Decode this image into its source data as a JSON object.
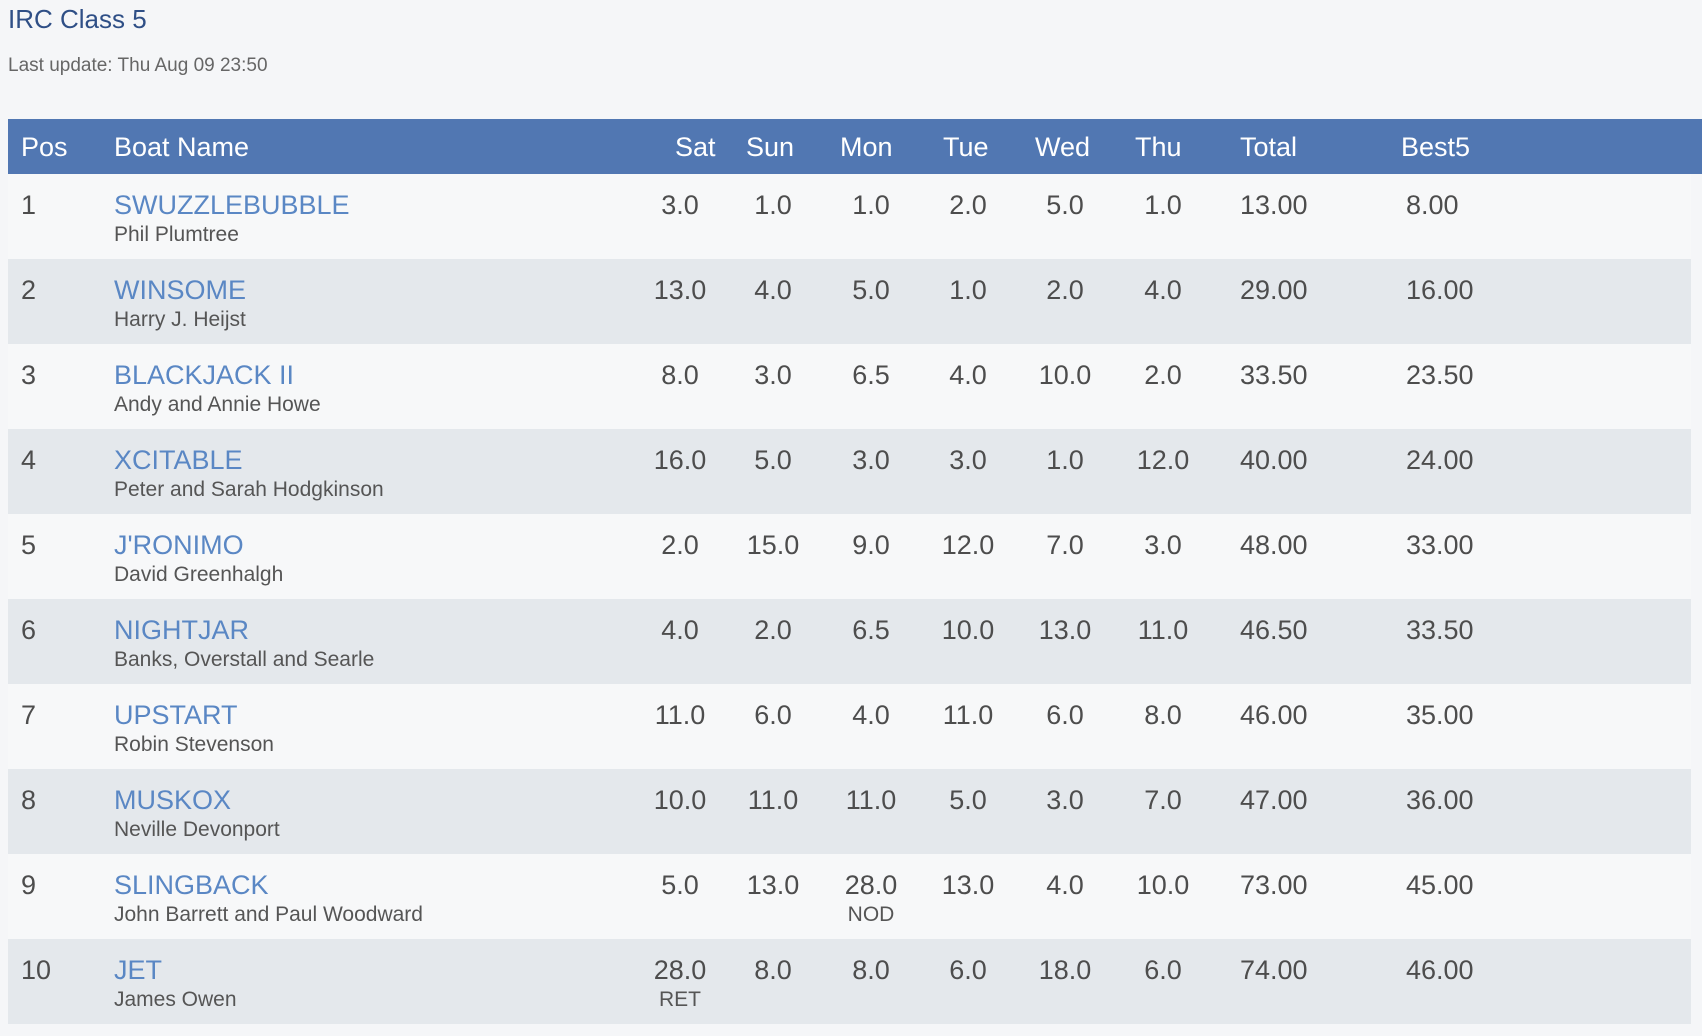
{
  "page": {
    "title": "IRC Class 5",
    "last_update": "Last update: Thu Aug 09 23:50"
  },
  "table": {
    "headers": {
      "pos": "Pos",
      "boat": "Boat Name",
      "sat": "Sat",
      "sun": "Sun",
      "mon": "Mon",
      "tue": "Tue",
      "wed": "Wed",
      "thu": "Thu",
      "total": "Total",
      "best5": "Best5"
    },
    "rows": [
      {
        "pos": "1",
        "boat": "SWUZZLEBUBBLE",
        "skipper": "Phil Plumtree",
        "sat": "3.0",
        "sat_code": "",
        "sun": "1.0",
        "sun_code": "",
        "mon": "1.0",
        "mon_code": "",
        "tue": "2.0",
        "tue_code": "",
        "wed": "5.0",
        "wed_code": "",
        "thu": "1.0",
        "thu_code": "",
        "total": "13.00",
        "best5": "8.00"
      },
      {
        "pos": "2",
        "boat": "WINSOME",
        "skipper": "Harry J. Heijst",
        "sat": "13.0",
        "sat_code": "",
        "sun": "4.0",
        "sun_code": "",
        "mon": "5.0",
        "mon_code": "",
        "tue": "1.0",
        "tue_code": "",
        "wed": "2.0",
        "wed_code": "",
        "thu": "4.0",
        "thu_code": "",
        "total": "29.00",
        "best5": "16.00"
      },
      {
        "pos": "3",
        "boat": "BLACKJACK II",
        "skipper": "Andy and Annie Howe",
        "sat": "8.0",
        "sat_code": "",
        "sun": "3.0",
        "sun_code": "",
        "mon": "6.5",
        "mon_code": "",
        "tue": "4.0",
        "tue_code": "",
        "wed": "10.0",
        "wed_code": "",
        "thu": "2.0",
        "thu_code": "",
        "total": "33.50",
        "best5": "23.50"
      },
      {
        "pos": "4",
        "boat": "XCITABLE",
        "skipper": "Peter and Sarah Hodgkinson",
        "sat": "16.0",
        "sat_code": "",
        "sun": "5.0",
        "sun_code": "",
        "mon": "3.0",
        "mon_code": "",
        "tue": "3.0",
        "tue_code": "",
        "wed": "1.0",
        "wed_code": "",
        "thu": "12.0",
        "thu_code": "",
        "total": "40.00",
        "best5": "24.00"
      },
      {
        "pos": "5",
        "boat": "J'RONIMO",
        "skipper": "David Greenhalgh",
        "sat": "2.0",
        "sat_code": "",
        "sun": "15.0",
        "sun_code": "",
        "mon": "9.0",
        "mon_code": "",
        "tue": "12.0",
        "tue_code": "",
        "wed": "7.0",
        "wed_code": "",
        "thu": "3.0",
        "thu_code": "",
        "total": "48.00",
        "best5": "33.00"
      },
      {
        "pos": "6",
        "boat": "NIGHTJAR",
        "skipper": "Banks, Overstall and Searle",
        "sat": "4.0",
        "sat_code": "",
        "sun": "2.0",
        "sun_code": "",
        "mon": "6.5",
        "mon_code": "",
        "tue": "10.0",
        "tue_code": "",
        "wed": "13.0",
        "wed_code": "",
        "thu": "11.0",
        "thu_code": "",
        "total": "46.50",
        "best5": "33.50"
      },
      {
        "pos": "7",
        "boat": "UPSTART",
        "skipper": "Robin Stevenson",
        "sat": "11.0",
        "sat_code": "",
        "sun": "6.0",
        "sun_code": "",
        "mon": "4.0",
        "mon_code": "",
        "tue": "11.0",
        "tue_code": "",
        "wed": "6.0",
        "wed_code": "",
        "thu": "8.0",
        "thu_code": "",
        "total": "46.00",
        "best5": "35.00"
      },
      {
        "pos": "8",
        "boat": "MUSKOX",
        "skipper": "Neville Devonport",
        "sat": "10.0",
        "sat_code": "",
        "sun": "11.0",
        "sun_code": "",
        "mon": "11.0",
        "mon_code": "",
        "tue": "5.0",
        "tue_code": "",
        "wed": "3.0",
        "wed_code": "",
        "thu": "7.0",
        "thu_code": "",
        "total": "47.00",
        "best5": "36.00"
      },
      {
        "pos": "9",
        "boat": "SLINGBACK",
        "skipper": "John Barrett and Paul Woodward",
        "sat": "5.0",
        "sat_code": "",
        "sun": "13.0",
        "sun_code": "",
        "mon": "28.0",
        "mon_code": "NOD",
        "tue": "13.0",
        "tue_code": "",
        "wed": "4.0",
        "wed_code": "",
        "thu": "10.0",
        "thu_code": "",
        "total": "73.00",
        "best5": "45.00"
      },
      {
        "pos": "10",
        "boat": "JET",
        "skipper": "James Owen",
        "sat": "28.0",
        "sat_code": "RET",
        "sun": "8.0",
        "sun_code": "",
        "mon": "8.0",
        "mon_code": "",
        "tue": "6.0",
        "tue_code": "",
        "wed": "18.0",
        "wed_code": "",
        "thu": "6.0",
        "thu_code": "",
        "total": "74.00",
        "best5": "46.00"
      }
    ]
  },
  "colors": {
    "header_bg": "#5177b2",
    "boat_link": "#5a87c4",
    "title": "#2f4f86"
  }
}
